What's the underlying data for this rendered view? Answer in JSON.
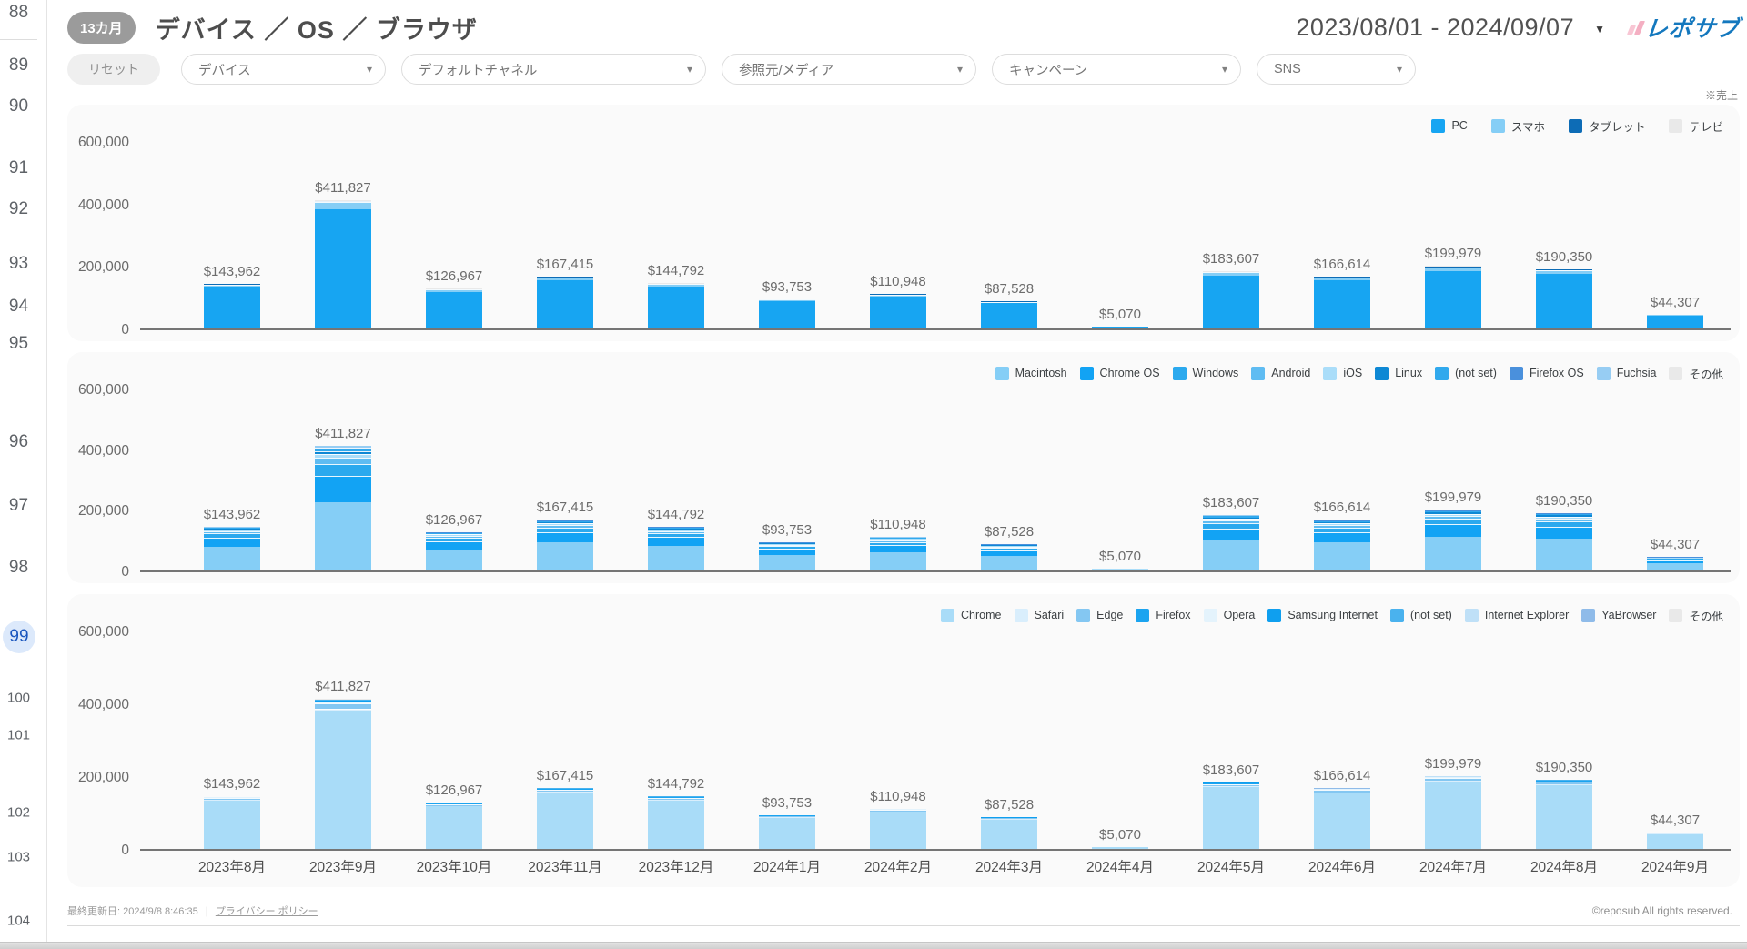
{
  "sidebar": {
    "pages": [
      "88",
      "89",
      "90",
      "91",
      "92",
      "93",
      "94",
      "95",
      "96",
      "97",
      "98",
      "99",
      "100",
      "101",
      "102",
      "103",
      "104"
    ],
    "active_page": "99"
  },
  "header": {
    "badge": "13カ月",
    "title": "デバイス ／ OS ／ ブラウザ",
    "date_range": "2023/08/01 - 2024/09/07",
    "logo": "レポサブ",
    "sales_note": "※売上"
  },
  "filters": {
    "reset": "リセット",
    "dropdowns": [
      {
        "label": "デバイス"
      },
      {
        "label": "デフォルトチャネル"
      },
      {
        "label": "参照元/メディア"
      },
      {
        "label": "キャンペーン"
      },
      {
        "label": "SNS"
      }
    ]
  },
  "chart_data": [
    {
      "type": "bar",
      "stacked": true,
      "title": "デバイス",
      "legend_position": "top-right",
      "categories": [
        "2023年8月",
        "2023年9月",
        "2023年10月",
        "2023年11月",
        "2023年12月",
        "2024年1月",
        "2024年2月",
        "2024年3月",
        "2024年4月",
        "2024年5月",
        "2024年6月",
        "2024年7月",
        "2024年8月",
        "2024年9月"
      ],
      "totals": [
        143962,
        411827,
        126967,
        167415,
        144792,
        93753,
        110948,
        87528,
        5070,
        183607,
        166614,
        199979,
        190350,
        44307
      ],
      "total_labels": [
        "$143,962",
        "$411,827",
        "$126,967",
        "$167,415",
        "$144,792",
        "$93,753",
        "$110,948",
        "$87,528",
        "$5,070",
        "$183,607",
        "$166,614",
        "$199,979",
        "$190,350",
        "$44,307"
      ],
      "y_ticks": [
        "600,000",
        "400,000",
        "200,000",
        "0"
      ],
      "ymax": 600000,
      "grid": false,
      "series": [
        {
          "name": "PC",
          "color": "#17A5F2",
          "share": 0.925
        },
        {
          "name": "スマホ",
          "color": "#85CEF6",
          "share": 0.055
        },
        {
          "name": "タブレット",
          "color": "#0D6CB6",
          "share": 0.012
        },
        {
          "name": "テレビ",
          "color": "#E9E9E9",
          "share": 0.008
        }
      ]
    },
    {
      "type": "bar",
      "stacked": true,
      "title": "OS",
      "legend_position": "top-right",
      "categories": [
        "2023年8月",
        "2023年9月",
        "2023年10月",
        "2023年11月",
        "2023年12月",
        "2024年1月",
        "2024年2月",
        "2024年3月",
        "2024年4月",
        "2024年5月",
        "2024年6月",
        "2024年7月",
        "2024年8月",
        "2024年9月"
      ],
      "totals": [
        143962,
        411827,
        126967,
        167415,
        144792,
        93753,
        110948,
        87528,
        5070,
        183607,
        166614,
        199979,
        190350,
        44307
      ],
      "total_labels": [
        "$143,962",
        "$411,827",
        "$126,967",
        "$167,415",
        "$144,792",
        "$93,753",
        "$110,948",
        "$87,528",
        "$5,070",
        "$183,607",
        "$166,614",
        "$199,979",
        "$190,350",
        "$44,307"
      ],
      "y_ticks": [
        "600,000",
        "400,000",
        "200,000",
        "0"
      ],
      "ymax": 600000,
      "grid": false,
      "series": [
        {
          "name": "Macintosh",
          "color": "#85CEF6",
          "share": 0.55
        },
        {
          "name": "Chrome OS",
          "color": "#12A3F4",
          "share": 0.21
        },
        {
          "name": "Windows",
          "color": "#2BA9EE",
          "share": 0.09
        },
        {
          "name": "Android",
          "color": "#5FBCF2",
          "share": 0.05
        },
        {
          "name": "iOS",
          "color": "#AADDF9",
          "share": 0.035
        },
        {
          "name": "Linux",
          "color": "#0E88D4",
          "share": 0.02
        },
        {
          "name": "(not set)",
          "color": "#31A9ED",
          "share": 0.02
        },
        {
          "name": "Firefox OS",
          "color": "#4A90DC",
          "share": 0.012
        },
        {
          "name": "Fuchsia",
          "color": "#97CDF3",
          "share": 0.008
        },
        {
          "name": "その他",
          "color": "#E9E9E9",
          "share": 0.005
        }
      ]
    },
    {
      "type": "bar",
      "stacked": true,
      "title": "ブラウザ",
      "legend_position": "top-right",
      "categories": [
        "2023年8月",
        "2023年9月",
        "2023年10月",
        "2023年11月",
        "2023年12月",
        "2024年1月",
        "2024年2月",
        "2024年3月",
        "2024年4月",
        "2024年5月",
        "2024年6月",
        "2024年7月",
        "2024年8月",
        "2024年9月"
      ],
      "totals": [
        143962,
        411827,
        126967,
        167415,
        144792,
        93753,
        110948,
        87528,
        5070,
        183607,
        166614,
        199979,
        190350,
        44307
      ],
      "total_labels": [
        "$143,962",
        "$411,827",
        "$126,967",
        "$167,415",
        "$144,792",
        "$93,753",
        "$110,948",
        "$87,528",
        "$5,070",
        "$183,607",
        "$166,614",
        "$199,979",
        "$190,350",
        "$44,307"
      ],
      "y_ticks": [
        "600,000",
        "400,000",
        "200,000",
        "0"
      ],
      "ymax": 600000,
      "grid": false,
      "series": [
        {
          "name": "Chrome",
          "color": "#A9DCF8",
          "share": 0.92
        },
        {
          "name": "Safari",
          "color": "#D9EEFC",
          "share": 0.015
        },
        {
          "name": "Edge",
          "color": "#84C7F2",
          "share": 0.035
        },
        {
          "name": "Firefox",
          "color": "#1BA4F0",
          "share": 0.01
        },
        {
          "name": "Opera",
          "color": "#E4F3FC",
          "share": 0.005
        },
        {
          "name": "Samsung Internet",
          "color": "#0F9FEF",
          "share": 0.005
        },
        {
          "name": "(not set)",
          "color": "#4AB2EE",
          "share": 0.004
        },
        {
          "name": "Internet Explorer",
          "color": "#BFE0F7",
          "share": 0.003
        },
        {
          "name": "YaBrowser",
          "color": "#8FBBE9",
          "share": 0.002
        },
        {
          "name": "その他",
          "color": "#E9E9E9",
          "share": 0.001
        }
      ]
    }
  ],
  "footer": {
    "last_updated": "最終更新日: 2024/9/8 8:46:35",
    "privacy": "プライバシー ポリシー",
    "copyright": "©reposub All rights reserved."
  }
}
